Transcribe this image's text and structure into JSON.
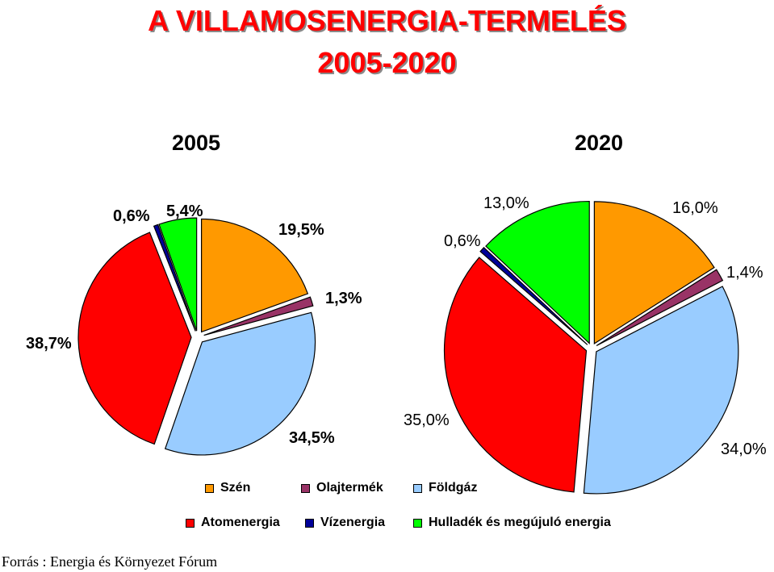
{
  "title_line1": "A VILLAMOSENERGIA-TERMELÉS",
  "title_line2": "2005-2020",
  "source": "Forrás : Energia és Környezet Fórum",
  "colors": {
    "szen": "#ff9900",
    "olaj": "#993366",
    "foldgaz": "#99ccff",
    "atom": "#ff0000",
    "viz": "#000099",
    "megujulo": "#00ff00"
  },
  "legend": {
    "row1": [
      {
        "label": "Szén",
        "color": "#ff9900"
      },
      {
        "label": "Olajtermék",
        "color": "#993366"
      },
      {
        "label": "Földgáz",
        "color": "#99ccff"
      }
    ],
    "row2": [
      {
        "label": "Atomenergia",
        "color": "#ff0000"
      },
      {
        "label": "Vízenergia",
        "color": "#000099"
      },
      {
        "label": "Hulladék és megújuló energia",
        "color": "#00ff00"
      }
    ]
  },
  "chart_data": [
    {
      "type": "pie",
      "title": "2005",
      "categories": [
        "Szén",
        "Olajtermék",
        "Földgáz",
        "Atomenergia",
        "Vízenergia",
        "Hulladék és megújuló energia"
      ],
      "values": [
        19.5,
        1.3,
        34.5,
        38.7,
        0.6,
        5.4
      ],
      "labels": [
        "19,5%",
        "1,3%",
        "34,5%",
        "38,7%",
        "0,6%",
        "5,4%"
      ],
      "colors": [
        "#ff9900",
        "#993366",
        "#99ccff",
        "#ff0000",
        "#000099",
        "#00ff00"
      ],
      "exploded": true
    },
    {
      "type": "pie",
      "title": "2020",
      "categories": [
        "Szén",
        "Olajtermék",
        "Földgáz",
        "Atomenergia",
        "Vízenergia",
        "Hulladék és megújuló energia"
      ],
      "values": [
        16.0,
        1.4,
        34.0,
        35.0,
        0.6,
        13.0
      ],
      "labels": [
        "16,0%",
        "1,4%",
        "34,0%",
        "35,0%",
        "0,6%",
        "13,0%"
      ],
      "colors": [
        "#ff9900",
        "#993366",
        "#99ccff",
        "#ff0000",
        "#000099",
        "#00ff00"
      ],
      "exploded": true
    }
  ]
}
